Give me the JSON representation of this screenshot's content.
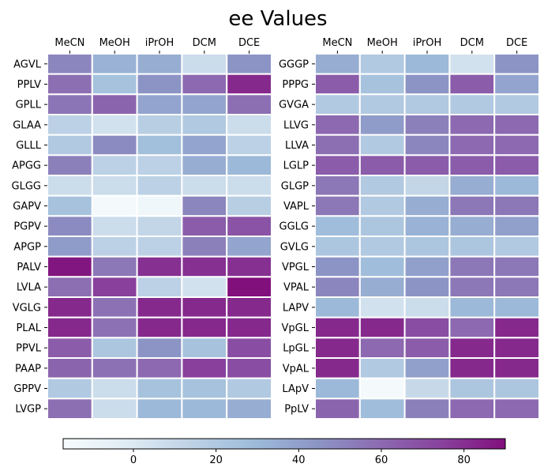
{
  "chart_data": [
    {
      "type": "heatmap",
      "title": "ee Values",
      "columns": [
        "MeCN",
        "MeOH",
        "iPrOH",
        "DCM",
        "DCE"
      ],
      "rows": [
        "AGVL",
        "PPLV",
        "GPLL",
        "GLAA",
        "GLLL",
        "APGG",
        "GLGG",
        "GAPV",
        "PGPV",
        "APGP",
        "PALV",
        "LVLA",
        "VGLG",
        "PLAL",
        "PPVL",
        "PAAP",
        "GPPV",
        "LVGP"
      ],
      "values": [
        [
          50,
          33,
          35,
          8,
          45
        ],
        [
          58,
          25,
          45,
          60,
          82
        ],
        [
          56,
          62,
          38,
          38,
          58
        ],
        [
          15,
          5,
          17,
          20,
          8
        ],
        [
          20,
          48,
          27,
          38,
          15
        ],
        [
          52,
          15,
          15,
          35,
          30
        ],
        [
          8,
          8,
          15,
          8,
          8
        ],
        [
          25,
          -15,
          -12,
          50,
          17
        ],
        [
          48,
          8,
          12,
          65,
          68
        ],
        [
          42,
          15,
          15,
          52,
          38
        ],
        [
          88,
          55,
          80,
          80,
          80
        ],
        [
          58,
          75,
          15,
          5,
          90
        ],
        [
          82,
          57,
          82,
          82,
          82
        ],
        [
          82,
          57,
          82,
          82,
          82
        ],
        [
          65,
          22,
          45,
          25,
          70
        ],
        [
          62,
          57,
          60,
          75,
          70
        ],
        [
          20,
          8,
          25,
          25,
          20
        ],
        [
          58,
          8,
          30,
          30,
          35
        ]
      ]
    },
    {
      "type": "heatmap",
      "title": "",
      "columns": [
        "MeCN",
        "MeOH",
        "iPrOH",
        "DCM",
        "DCE"
      ],
      "rows": [
        "GGGP",
        "PPPG",
        "GVGA",
        "LLVG",
        "LLVA",
        "LGLP",
        "GLGP",
        "VAPL",
        "GGLG",
        "GVLG",
        "VPGL",
        "VPAL",
        "LAPV",
        "VpGL",
        "LpGL",
        "VpAL",
        "LApV",
        "PpLV"
      ],
      "values": [
        [
          35,
          20,
          30,
          5,
          45
        ],
        [
          65,
          25,
          45,
          65,
          38
        ],
        [
          20,
          20,
          20,
          20,
          20
        ],
        [
          60,
          42,
          52,
          60,
          60
        ],
        [
          58,
          20,
          50,
          60,
          60
        ],
        [
          65,
          65,
          65,
          65,
          65
        ],
        [
          55,
          20,
          12,
          35,
          30
        ],
        [
          55,
          20,
          35,
          55,
          55
        ],
        [
          28,
          22,
          33,
          35,
          40
        ],
        [
          22,
          20,
          22,
          22,
          20
        ],
        [
          45,
          28,
          40,
          55,
          55
        ],
        [
          50,
          35,
          45,
          55,
          55
        ],
        [
          30,
          5,
          8,
          30,
          30
        ],
        [
          82,
          82,
          70,
          60,
          82
        ],
        [
          82,
          60,
          65,
          82,
          82
        ],
        [
          82,
          20,
          40,
          82,
          82
        ],
        [
          30,
          -15,
          10,
          22,
          22
        ],
        [
          62,
          28,
          52,
          60,
          60
        ]
      ]
    }
  ],
  "colorbar": {
    "min": -17,
    "max": 90,
    "ticks": [
      0,
      20,
      40,
      60,
      80
    ],
    "colormap": [
      "#f7fcfd",
      "#e0ecf4",
      "#bfd3e6",
      "#9ebcda",
      "#8c96c6",
      "#8c6bb1",
      "#88419d",
      "#810f7c"
    ]
  }
}
